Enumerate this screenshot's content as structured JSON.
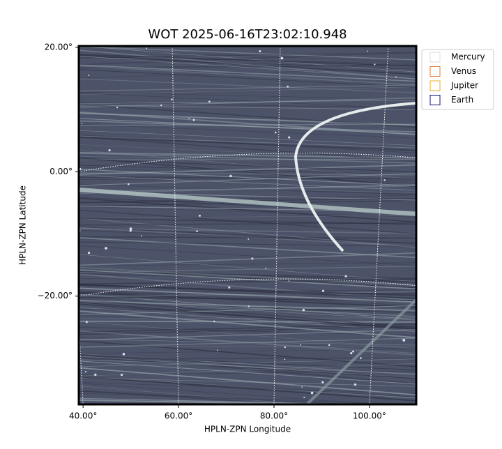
{
  "chart_data": {
    "type": "image",
    "title": "WOT 2025-06-16T23:02:10.948",
    "xlabel": "HPLN-ZPN Longitude",
    "ylabel": "HPLN-ZPN Latitude",
    "xlim": [
      39.1,
      109.8
    ],
    "ylim": [
      -37.4,
      20.2
    ],
    "xticks": [
      {
        "value": 40,
        "label": "40.00°"
      },
      {
        "value": 60,
        "label": "60.00°"
      },
      {
        "value": 80,
        "label": "80.00°"
      },
      {
        "value": 100,
        "label": "100.00°"
      }
    ],
    "yticks": [
      {
        "value": 20,
        "label": "20.00°"
      },
      {
        "value": 0,
        "label": "0.00°"
      },
      {
        "value": -20,
        "label": "−20.00°"
      }
    ],
    "grid": true,
    "legend_position": "upper right outside",
    "legend": [
      {
        "name": "Mercury",
        "color": "#dddddd"
      },
      {
        "name": "Venus",
        "color": "#e07b39"
      },
      {
        "name": "Jupiter",
        "color": "#e0b020"
      },
      {
        "name": "Earth",
        "color": "#101070"
      }
    ]
  }
}
